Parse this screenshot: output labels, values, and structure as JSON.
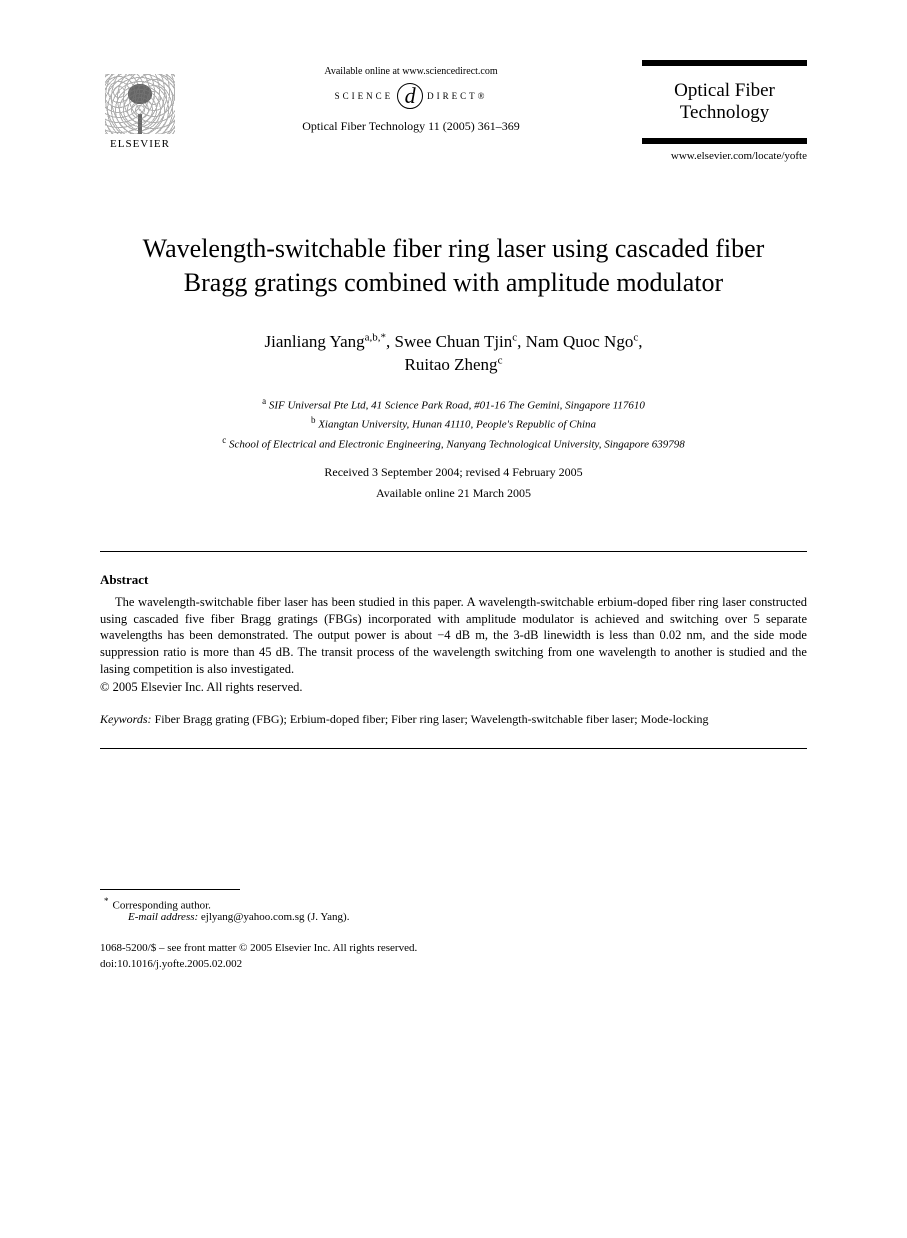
{
  "header": {
    "elsevier_label": "ELSEVIER",
    "available_online": "Available online at www.sciencedirect.com",
    "sd_left": "SCIENCE",
    "sd_d": "d",
    "sd_right": "DIRECT®",
    "journal_ref": "Optical Fiber Technology 11 (2005) 361–369",
    "journal_box_line1": "Optical Fiber",
    "journal_box_line2": "Technology",
    "journal_url": "www.elsevier.com/locate/yofte"
  },
  "title": "Wavelength-switchable fiber ring laser using cascaded fiber Bragg gratings combined with amplitude modulator",
  "authors_html": {
    "a1_name": "Jianliang Yang",
    "a1_sup": "a,b,*",
    "a2_name": "Swee Chuan Tjin",
    "a2_sup": "c",
    "a3_name": "Nam Quoc Ngo",
    "a3_sup": "c",
    "a4_name": "Ruitao Zheng",
    "a4_sup": "c"
  },
  "affiliations": {
    "a_sup": "a",
    "a_text": "SIF Universal Pte Ltd, 41 Science Park Road, #01-16 The Gemini, Singapore 117610",
    "b_sup": "b",
    "b_text": "Xiangtan University, Hunan 41110, People's Republic of China",
    "c_sup": "c",
    "c_text": "School of Electrical and Electronic Engineering, Nanyang Technological University, Singapore 639798"
  },
  "dates": {
    "received_revised": "Received 3 September 2004; revised 4 February 2005",
    "available": "Available online 21 March 2005"
  },
  "abstract": {
    "heading": "Abstract",
    "body": "The wavelength-switchable fiber laser has been studied in this paper. A wavelength-switchable erbium-doped fiber ring laser constructed using cascaded five fiber Bragg gratings (FBGs) incorporated with amplitude modulator is achieved and switching over 5 separate wavelengths has been demonstrated. The output power is about −4 dB m, the 3-dB linewidth is less than 0.02 nm, and the side mode suppression ratio is more than 45 dB. The transit process of the wavelength switching from one wavelength to another is studied and the lasing competition is also investigated.",
    "copyright": "© 2005 Elsevier Inc. All rights reserved."
  },
  "keywords": {
    "label": "Keywords:",
    "text": "Fiber Bragg grating (FBG); Erbium-doped fiber; Fiber ring laser; Wavelength-switchable fiber laser; Mode-locking"
  },
  "footnote": {
    "star": "*",
    "corr": "Corresponding author.",
    "email_label": "E-mail address:",
    "email": "ejlyang@yahoo.com.sg (J. Yang)."
  },
  "footer": {
    "line1": "1068-5200/$ – see front matter © 2005 Elsevier Inc. All rights reserved.",
    "line2": "doi:10.1016/j.yofte.2005.02.002"
  }
}
